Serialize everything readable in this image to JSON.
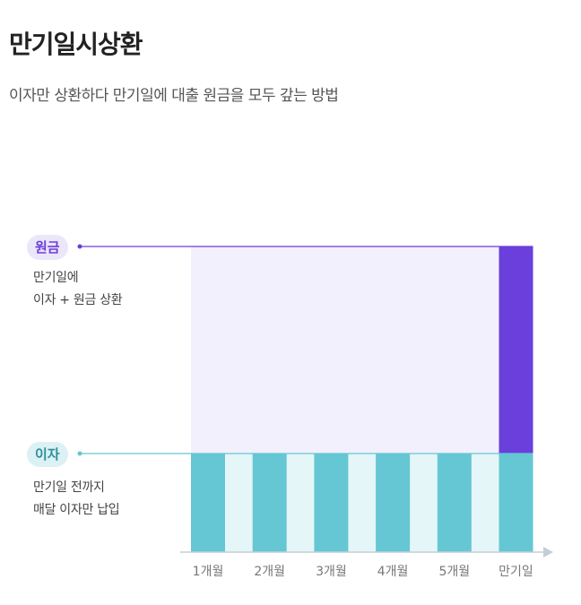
{
  "header": {
    "title": "만기일시상환",
    "subtitle": "이자만 상환하다 만기일에 대출 원금을 모두 갚는 방법"
  },
  "legend": {
    "principal": {
      "label": "원금",
      "desc_line1": "만기일에",
      "desc_line2": "이자 + 원금 상환"
    },
    "interest": {
      "label": "이자",
      "desc_line1": "만기일 전까지",
      "desc_line2": "매달 이자만 납입"
    }
  },
  "colors": {
    "principal": "#6a3fdb",
    "principal_area": "#f3f0fd",
    "interest": "#65c7d3",
    "interest_gap": "#e4f6f7",
    "axis": "#c5cdd6"
  },
  "chart_data": {
    "type": "bar",
    "categories": [
      "1개월",
      "2개월",
      "3개월",
      "4개월",
      "5개월",
      "만기일"
    ],
    "series": [
      {
        "name": "이자",
        "values": [
          1,
          1,
          1,
          1,
          1,
          1
        ]
      },
      {
        "name": "원금",
        "values": [
          0,
          0,
          0,
          0,
          0,
          1
        ]
      }
    ],
    "title": "",
    "xlabel": "",
    "ylabel": "",
    "grid": false
  }
}
